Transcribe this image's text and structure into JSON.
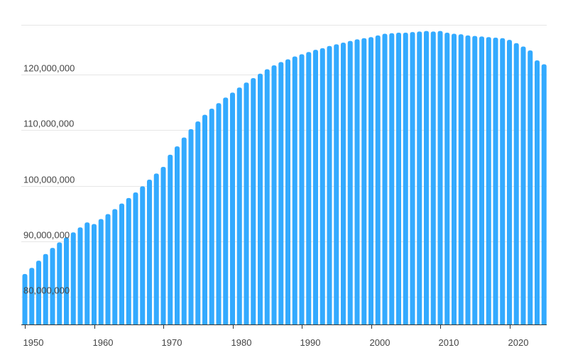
{
  "chart_data": {
    "type": "bar",
    "title": "",
    "xlabel": "",
    "ylabel": "",
    "color": "#33aaff",
    "grid": "horizontal",
    "ylim": [
      75000000,
      129000000
    ],
    "xlim": [
      1950,
      2025
    ],
    "yticks": [
      80000000,
      90000000,
      100000000,
      110000000,
      120000000
    ],
    "ytick_labels": [
      "80,000,000",
      "90,000,000",
      "100,000,000",
      "110,000,000",
      "120,000,000"
    ],
    "xticks": [
      1950,
      1960,
      1970,
      1980,
      1990,
      2000,
      2010,
      2020
    ],
    "xtick_labels": [
      "1950",
      "1960",
      "1970",
      "1980",
      "1990",
      "2000",
      "2010",
      "2020"
    ],
    "categories": [
      1950,
      1951,
      1952,
      1953,
      1954,
      1955,
      1956,
      1957,
      1958,
      1959,
      1960,
      1961,
      1962,
      1963,
      1964,
      1965,
      1966,
      1967,
      1968,
      1969,
      1970,
      1971,
      1972,
      1973,
      1974,
      1975,
      1976,
      1977,
      1978,
      1979,
      1980,
      1981,
      1982,
      1983,
      1984,
      1985,
      1986,
      1987,
      1988,
      1989,
      1990,
      1991,
      1992,
      1993,
      1994,
      1995,
      1996,
      1997,
      1998,
      1999,
      2000,
      2001,
      2002,
      2003,
      2004,
      2005,
      2006,
      2007,
      2008,
      2009,
      2010,
      2011,
      2012,
      2013,
      2014,
      2015,
      2016,
      2017,
      2018,
      2019,
      2020,
      2021,
      2022,
      2023,
      2024,
      2025
    ],
    "values": [
      84100000,
      85200000,
      86500000,
      87700000,
      88800000,
      89800000,
      90700000,
      91600000,
      92500000,
      93400000,
      93100000,
      94000000,
      94900000,
      95800000,
      96800000,
      97800000,
      98800000,
      99900000,
      101100000,
      102200000,
      103400000,
      105600000,
      107100000,
      108700000,
      110200000,
      111600000,
      112800000,
      113900000,
      114900000,
      115900000,
      116800000,
      117700000,
      118600000,
      119400000,
      120200000,
      121000000,
      121700000,
      122300000,
      122800000,
      123300000,
      123700000,
      124100000,
      124500000,
      124800000,
      125200000,
      125500000,
      125800000,
      126100000,
      126400000,
      126600000,
      126800000,
      127100000,
      127400000,
      127500000,
      127600000,
      127600000,
      127700000,
      127800000,
      127900000,
      127800000,
      127900000,
      127600000,
      127400000,
      127300000,
      127100000,
      127000000,
      126900000,
      126800000,
      126700000,
      126600000,
      126300000,
      125700000,
      125100000,
      124400000,
      122600000,
      121900000
    ]
  }
}
